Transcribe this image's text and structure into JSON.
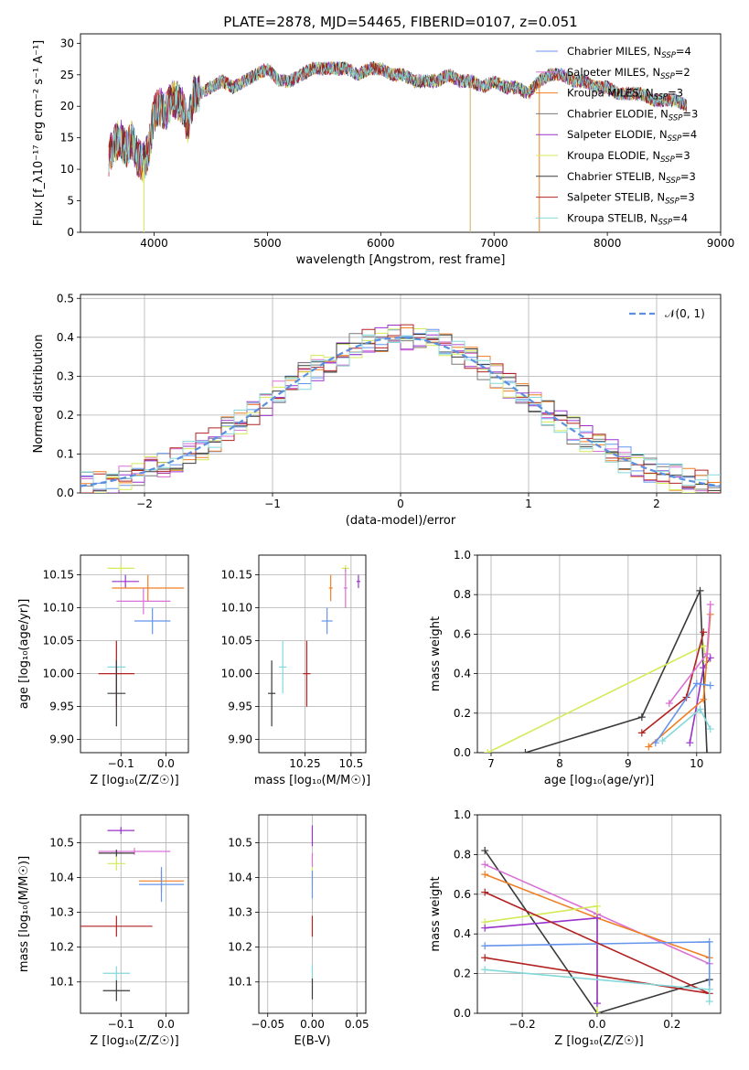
{
  "chart_data": [
    {
      "id": "spectrum",
      "type": "line",
      "title": "PLATE=2878, MJD=54465, FIBERID=0107, z=0.051",
      "xlabel": "wavelength [Angstrom, rest frame]",
      "ylabel": "Flux [f_λ10⁻¹⁷ erg cm⁻² s⁻¹ A⁻¹]",
      "xlim": [
        3350,
        9000
      ],
      "ylim": [
        0,
        31.5
      ],
      "xticks": [
        4000,
        5000,
        6000,
        7000,
        8000,
        9000
      ],
      "yticks": [
        0,
        5,
        10,
        15,
        20,
        25,
        30
      ],
      "grid": false,
      "legend_position": "top-right",
      "series": [
        {
          "name": "Chabrier MILES, N_SSP=4",
          "color": "#6495ED"
        },
        {
          "name": "Salpeter MILES, N_SSP=2",
          "color": "#DA70D6"
        },
        {
          "name": "Kroupa MILES, N_SSP=3",
          "color": "#F07F24"
        },
        {
          "name": "Chabrier ELODIE, N_SSP=3",
          "color": "#7A7A7A"
        },
        {
          "name": "Salpeter ELODIE, N_SSP=4",
          "color": "#9932CC"
        },
        {
          "name": "Kroupa ELODIE, N_SSP=3",
          "color": "#D4EA58"
        },
        {
          "name": "Chabrier STELIB, N_SSP=3",
          "color": "#3A3A3A"
        },
        {
          "name": "Salpeter STELIB, N_SSP=3",
          "color": "#B22222"
        },
        {
          "name": "Kroupa STELIB, N_SSP=4",
          "color": "#84D8DA"
        }
      ],
      "x": [
        3600,
        3650,
        3700,
        3750,
        3800,
        3850,
        3900,
        3950,
        4000,
        4050,
        4100,
        4150,
        4200,
        4250,
        4300,
        4350,
        4400,
        4500,
        4600,
        4700,
        4800,
        4900,
        5000,
        5100,
        5200,
        5300,
        5400,
        5500,
        5600,
        5700,
        5800,
        5900,
        6000,
        6100,
        6200,
        6300,
        6400,
        6500,
        6600,
        6700,
        6800,
        6900,
        7000,
        7100,
        7200,
        7300,
        7400,
        7500,
        7600,
        7700,
        7800,
        7900,
        8000,
        8100,
        8200,
        8300,
        8400,
        8500,
        8600,
        8700
      ],
      "y": [
        12,
        14,
        15,
        13,
        15,
        12,
        11,
        13,
        19,
        20,
        19,
        21,
        21,
        20,
        17,
        22,
        22,
        23,
        24,
        23,
        24,
        25,
        26,
        24,
        24,
        25,
        26,
        26,
        26,
        26,
        25,
        26,
        26,
        25,
        25,
        24,
        24,
        24,
        25,
        24,
        24,
        23,
        24,
        23,
        23,
        22,
        24,
        25,
        25,
        24,
        24,
        23,
        23,
        22,
        22,
        22,
        21,
        21,
        21,
        20
      ],
      "sky_lines_x": [
        3910,
        6790,
        7400
      ]
    },
    {
      "id": "residuals",
      "type": "histogram",
      "xlabel": "(data-model)/error",
      "ylabel": "Normed distribution",
      "xlim": [
        -2.5,
        2.5
      ],
      "ylim": [
        0,
        0.51
      ],
      "xticks": [
        -2,
        -1,
        0,
        1,
        2
      ],
      "yticks": [
        0.0,
        0.1,
        0.2,
        0.3,
        0.4,
        0.5
      ],
      "grid": true,
      "legend_position": "top-right",
      "legend": [
        {
          "name": "𝒩(0, 1)",
          "color": "#5B8FE0",
          "style": "dashed"
        }
      ]
    },
    {
      "id": "age_vs_Z",
      "type": "scatter",
      "xlabel": "Z [log₁₀(Z/Z☉)]",
      "ylabel": "age  [log₁₀(age/yr)]",
      "xlim": [
        -0.19,
        0.05
      ],
      "ylim": [
        9.88,
        10.18
      ],
      "xticks": [
        -0.1,
        0.0
      ],
      "xtick_labels": [
        "−0.1",
        "0.0"
      ],
      "yticks": [
        9.9,
        9.95,
        10.0,
        10.05,
        10.1,
        10.15
      ],
      "grid": true,
      "points": [
        {
          "x": -0.1,
          "xerr": 0.03,
          "y": 10.16,
          "yerr": 0.005,
          "color": "#D4EA58"
        },
        {
          "x": -0.09,
          "xerr": 0.03,
          "y": 10.14,
          "yerr": 0.01,
          "color": "#9932CC"
        },
        {
          "x": -0.04,
          "xerr": 0.08,
          "y": 10.13,
          "yerr": 0.02,
          "color": "#F07F24"
        },
        {
          "x": -0.05,
          "xerr": 0.06,
          "y": 10.11,
          "yerr": 0.02,
          "color": "#DA70D6"
        },
        {
          "x": -0.03,
          "xerr": 0.04,
          "y": 10.08,
          "yerr": 0.02,
          "color": "#6495ED"
        },
        {
          "x": -0.11,
          "xerr": 0.02,
          "y": 10.01,
          "yerr": 0.04,
          "color": "#84D8DA"
        },
        {
          "x": -0.11,
          "xerr": 0.04,
          "y": 10.0,
          "yerr": 0.05,
          "color": "#B22222"
        },
        {
          "x": -0.11,
          "xerr": 0.02,
          "y": 9.97,
          "yerr": 0.05,
          "color": "#3A3A3A"
        }
      ]
    },
    {
      "id": "age_vs_mass",
      "type": "scatter",
      "xlabel": "mass [log₁₀(M/M☉)]",
      "xlim": [
        10.0,
        10.58
      ],
      "ylim": [
        9.88,
        10.18
      ],
      "xticks": [
        10.25,
        10.5
      ],
      "yticks": [
        9.9,
        9.95,
        10.0,
        10.05,
        10.1,
        10.15
      ],
      "grid": true,
      "points": [
        {
          "x": 10.47,
          "xerr": 0.02,
          "y": 10.16,
          "yerr": 0.005,
          "color": "#D4EA58"
        },
        {
          "x": 10.54,
          "xerr": 0.01,
          "y": 10.14,
          "yerr": 0.01,
          "color": "#9932CC"
        },
        {
          "x": 10.39,
          "xerr": 0.01,
          "y": 10.13,
          "yerr": 0.02,
          "color": "#F07F24"
        },
        {
          "x": 10.47,
          "xerr": 0.01,
          "y": 10.13,
          "yerr": 0.03,
          "color": "#DA70D6"
        },
        {
          "x": 10.37,
          "xerr": 0.03,
          "y": 10.08,
          "yerr": 0.02,
          "color": "#6495ED"
        },
        {
          "x": 10.13,
          "xerr": 0.02,
          "y": 10.01,
          "yerr": 0.04,
          "color": "#84D8DA"
        },
        {
          "x": 10.26,
          "xerr": 0.02,
          "y": 10.0,
          "yerr": 0.05,
          "color": "#B22222"
        },
        {
          "x": 10.07,
          "xerr": 0.02,
          "y": 9.97,
          "yerr": 0.05,
          "color": "#3A3A3A"
        }
      ]
    },
    {
      "id": "weight_vs_age",
      "type": "line",
      "xlabel": "age  [log₁₀(age/yr)]",
      "ylabel": "mass weight",
      "xlim": [
        6.8,
        10.35
      ],
      "ylim": [
        0,
        1.0
      ],
      "xticks": [
        7,
        8,
        9,
        10
      ],
      "yticks": [
        0.0,
        0.2,
        0.4,
        0.6,
        0.8,
        1.0
      ],
      "grid": true,
      "series": [
        {
          "color": "#3A3A3A",
          "x": [
            7.5,
            9.2,
            10.05,
            10.15
          ],
          "y": [
            0.0,
            0.18,
            0.82,
            0.0
          ]
        },
        {
          "color": "#D4EA58",
          "x": [
            6.95,
            10.1,
            10.15
          ],
          "y": [
            0.0,
            0.54,
            0.46
          ]
        },
        {
          "color": "#B22222",
          "x": [
            9.2,
            9.85,
            10.1
          ],
          "y": [
            0.1,
            0.28,
            0.61
          ]
        },
        {
          "color": "#9932CC",
          "x": [
            9.9,
            10.1,
            10.2
          ],
          "y": [
            0.05,
            0.43,
            0.48
          ]
        },
        {
          "color": "#F07F24",
          "x": [
            9.3,
            10.1,
            10.2
          ],
          "y": [
            0.03,
            0.27,
            0.7
          ]
        },
        {
          "color": "#DA70D6",
          "x": [
            9.6,
            10.15,
            10.2
          ],
          "y": [
            0.25,
            0.5,
            0.75
          ]
        },
        {
          "color": "#6495ED",
          "x": [
            9.4,
            10.0,
            10.2
          ],
          "y": [
            0.05,
            0.35,
            0.34
          ]
        },
        {
          "color": "#84D8DA",
          "x": [
            9.5,
            10.05,
            10.2
          ],
          "y": [
            0.06,
            0.22,
            0.12
          ]
        }
      ]
    },
    {
      "id": "mass_vs_Z",
      "type": "scatter",
      "xlabel": "Z [log₁₀(Z/Z☉)]",
      "ylabel": "mass [log₁₀(M/M☉)]",
      "xlim": [
        -0.19,
        0.05
      ],
      "ylim": [
        10.01,
        10.58
      ],
      "xticks": [
        -0.1,
        0.0
      ],
      "xtick_labels": [
        "−0.1",
        "0.0"
      ],
      "yticks": [
        10.1,
        10.2,
        10.3,
        10.4,
        10.5
      ],
      "grid": true,
      "points": [
        {
          "x": -0.1,
          "xerr": 0.03,
          "y": 10.535,
          "yerr": 0.01,
          "color": "#9932CC"
        },
        {
          "x": -0.07,
          "xerr": 0.08,
          "y": 10.475,
          "yerr": 0.01,
          "color": "#DA70D6"
        },
        {
          "x": -0.11,
          "xerr": 0.04,
          "y": 10.47,
          "yerr": 0.01,
          "color": "#3A3A3A"
        },
        {
          "x": -0.11,
          "xerr": 0.02,
          "y": 10.44,
          "yerr": 0.02,
          "color": "#D4EA58"
        },
        {
          "x": -0.01,
          "xerr": 0.05,
          "y": 10.39,
          "yerr": 0.03,
          "color": "#F07F24"
        },
        {
          "x": -0.01,
          "xerr": 0.05,
          "y": 10.38,
          "yerr": 0.05,
          "color": "#6495ED"
        },
        {
          "x": -0.11,
          "xerr": 0.08,
          "y": 10.26,
          "yerr": 0.03,
          "color": "#B22222"
        },
        {
          "x": -0.11,
          "xerr": 0.03,
          "y": 10.125,
          "yerr": 0.02,
          "color": "#84D8DA"
        },
        {
          "x": -0.11,
          "xerr": 0.03,
          "y": 10.075,
          "yerr": 0.03,
          "color": "#3A3A3A"
        }
      ]
    },
    {
      "id": "mass_vs_EBV",
      "type": "scatter",
      "xlabel": "E(B-V)",
      "xlim": [
        -0.06,
        0.06
      ],
      "ylim": [
        10.01,
        10.58
      ],
      "xticks": [
        -0.05,
        0.0,
        0.05
      ],
      "xtick_labels": [
        "−0.05",
        "0.00",
        "0.05"
      ],
      "yticks": [
        10.1,
        10.2,
        10.3,
        10.4,
        10.5
      ],
      "grid": true,
      "points": [
        {
          "x": 0.0,
          "y": 10.52,
          "yerr": 0.03,
          "color": "#9932CC"
        },
        {
          "x": 0.0,
          "y": 10.45,
          "yerr": 0.02,
          "color": "#DA70D6"
        },
        {
          "x": 0.0,
          "y": 10.4,
          "yerr": 0.03,
          "color": "#D4EA58"
        },
        {
          "x": 0.0,
          "y": 10.38,
          "yerr": 0.04,
          "color": "#6495ED"
        },
        {
          "x": 0.0,
          "y": 10.26,
          "yerr": 0.03,
          "color": "#B22222"
        },
        {
          "x": 0.0,
          "y": 10.13,
          "yerr": 0.02,
          "color": "#84D8DA"
        },
        {
          "x": 0.0,
          "y": 10.08,
          "yerr": 0.03,
          "color": "#3A3A3A"
        }
      ]
    },
    {
      "id": "weight_vs_Z",
      "type": "line",
      "xlabel": "Z [log₁₀(Z/Z☉)]",
      "ylabel": "mass weight",
      "xlim": [
        -0.32,
        0.33
      ],
      "ylim": [
        0,
        1.0
      ],
      "xticks": [
        -0.2,
        0.0,
        0.2
      ],
      "xtick_labels": [
        "−0.2",
        "0.0",
        "0.2"
      ],
      "yticks": [
        0.0,
        0.2,
        0.4,
        0.6,
        0.8,
        1.0
      ],
      "grid": true,
      "series": [
        {
          "color": "#3A3A3A",
          "x": [
            -0.3,
            0.0,
            0.3
          ],
          "y": [
            0.82,
            0.0,
            0.17
          ]
        },
        {
          "color": "#DA70D6",
          "x": [
            -0.3,
            0.0,
            0.3
          ],
          "y": [
            0.75,
            0.5,
            0.25
          ]
        },
        {
          "color": "#F07F24",
          "x": [
            -0.3,
            0.0,
            0.3
          ],
          "y": [
            0.7,
            0.48,
            0.28
          ]
        },
        {
          "color": "#D4EA58",
          "x": [
            -0.3,
            0.0,
            0.0
          ],
          "y": [
            0.46,
            0.54,
            0.0
          ]
        },
        {
          "color": "#9932CC",
          "x": [
            -0.3,
            0.0,
            0.0
          ],
          "y": [
            0.43,
            0.48,
            0.05
          ]
        },
        {
          "color": "#6495ED",
          "x": [
            -0.3,
            0.3,
            0.3
          ],
          "y": [
            0.34,
            0.36,
            0.12
          ]
        },
        {
          "color": "#B22222",
          "x": [
            -0.3,
            0.3,
            -0.3
          ],
          "y": [
            0.28,
            0.1,
            0.61
          ]
        },
        {
          "color": "#84D8DA",
          "x": [
            -0.3,
            0.3,
            0.3
          ],
          "y": [
            0.22,
            0.12,
            0.06
          ]
        }
      ]
    }
  ]
}
